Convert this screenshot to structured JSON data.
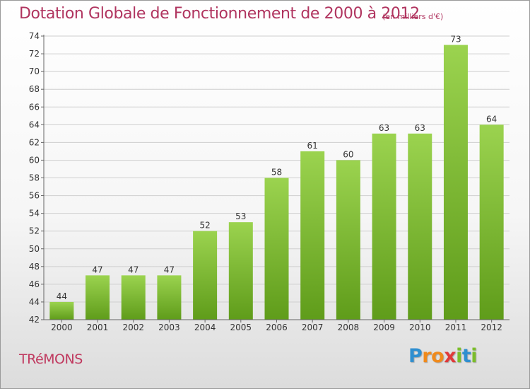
{
  "header": {
    "title": "Dotation Globale de Fonctionnement de 2000 à 2012",
    "unit": "(en milliers d'€)"
  },
  "footer": {
    "commune": "TRéMONS"
  },
  "logo": {
    "letters": [
      "P",
      "r",
      "o",
      "x",
      "i",
      "t",
      "i"
    ],
    "colors": [
      "#2f8fd0",
      "#f08a1c",
      "#f08a1c",
      "#e03a3a",
      "#7bbd2a",
      "#2f8fd0",
      "#7bbd2a"
    ]
  },
  "colors": {
    "bar_light": "#9bd34f",
    "bar_dark": "#5f9c1a",
    "grid": "#cfcfcf",
    "axis": "#666666",
    "text": "#333333"
  },
  "chart_data": {
    "type": "bar",
    "categories": [
      "2000",
      "2001",
      "2002",
      "2003",
      "2004",
      "2005",
      "2006",
      "2007",
      "2008",
      "2009",
      "2010",
      "2011",
      "2012"
    ],
    "values": [
      44,
      47,
      47,
      47,
      52,
      53,
      58,
      61,
      60,
      63,
      63,
      73,
      64
    ],
    "title": "Dotation Globale de Fonctionnement de 2000 à 2012",
    "ylim": [
      42,
      74
    ],
    "yticks": [
      42,
      44,
      46,
      48,
      50,
      52,
      54,
      56,
      58,
      60,
      62,
      64,
      66,
      68,
      70,
      72,
      74
    ],
    "grid": true
  }
}
